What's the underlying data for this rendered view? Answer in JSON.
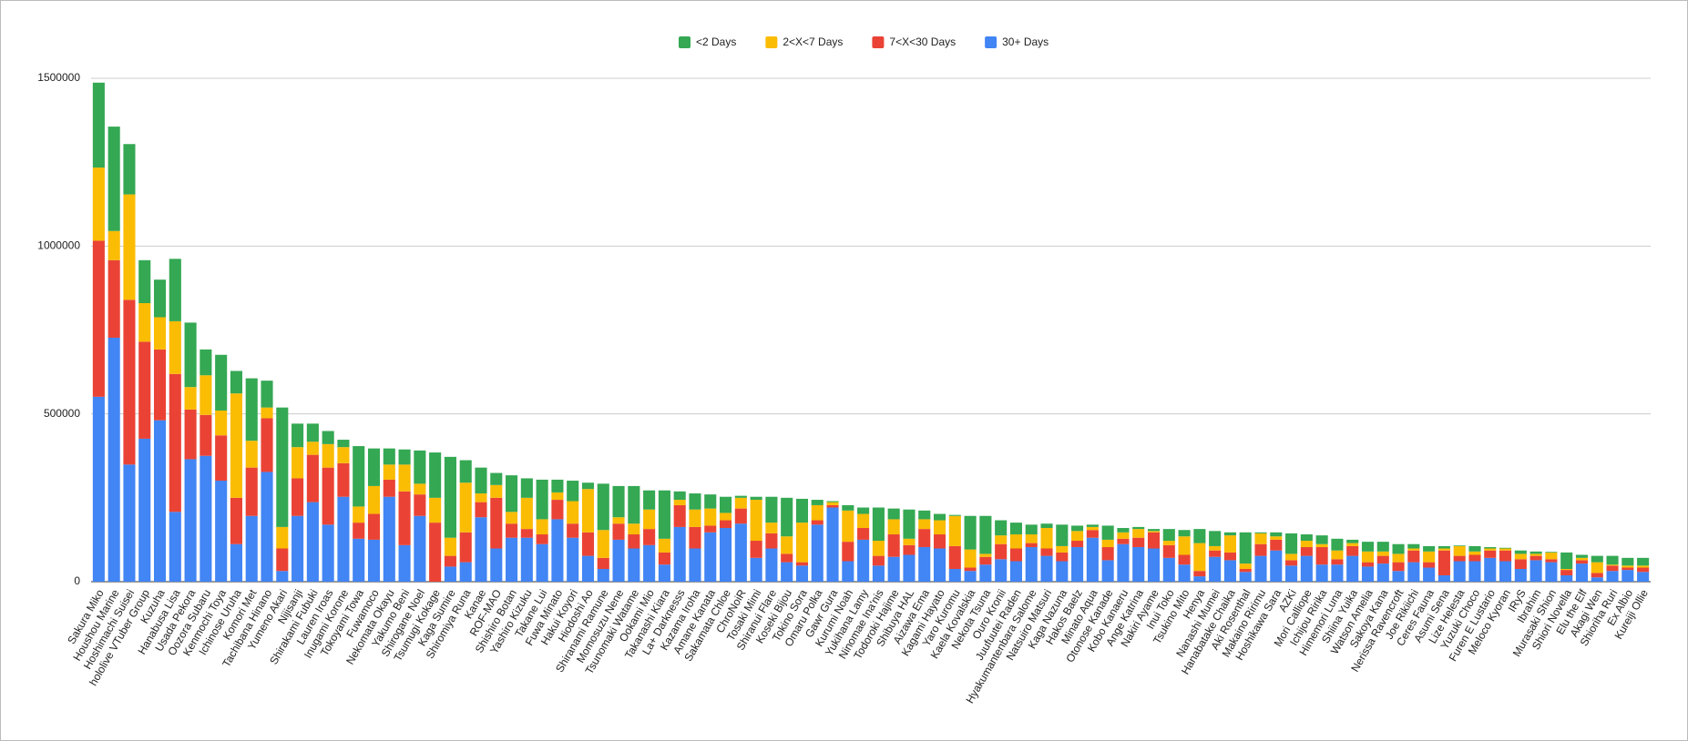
{
  "chart_data": {
    "type": "stacked_bar",
    "categories": [
      "Sakura Miko",
      "Houshou Marine",
      "Hoshimachi Suisei",
      "hololive VTuber Group",
      "Kuzuha",
      "Hanabusa Lisa",
      "Usada Pekora",
      "Oozora Subaru",
      "Kenmochi Toya",
      "Ichinose Uruha",
      "Komori Met",
      "Tachibana Hinano",
      "Yumeno Akari",
      "Nijisanji",
      "Shirakami Fubuki",
      "Lauren Iroas",
      "Inugami Korone",
      "Tokoyami Towa",
      "Fuwamoco",
      "Nekomata Okayu",
      "Yakumo Beni",
      "Shirogane Noel",
      "Tsumugi Kokage",
      "Kaga Sumire",
      "Shiromiya Runa",
      "Kanae",
      "ROF-MAO",
      "Shishiro Botan",
      "Yashiro Kizuku",
      "Takane Lui",
      "Fuwa Minato",
      "Hakui Koyori",
      "Hiodoshi Ao",
      "Shiranami Ramune",
      "Momosuzu Nene",
      "Tsunomaki Watame",
      "Ookami Mio",
      "Takanashi Kiara",
      "La+ Darknesss",
      "Kazama Iroha",
      "Amane Kanata",
      "Sakamata Chloe",
      "ChroNoiR",
      "Tosaki Mimi",
      "Shiranui Flare",
      "Koseki Bijou",
      "Tokino Sora",
      "Omaru Polka",
      "Gawr Gura",
      "Kurumi Noah",
      "Yukihana Lamy",
      "Ninomae Ina'nis",
      "Todoroki Hajime",
      "Shibuya HAL",
      "Aizawa Ema",
      "Kagami Hayato",
      "Yaro Kuromu",
      "Kaela Kovalskia",
      "Nekota Tsuna",
      "Ouro Kronii",
      "Juufuutei Raden",
      "Hyakumantenbara Salome",
      "Natsuiro Matsuri",
      "Kaga Nazuna",
      "Hakos Baelz",
      "Minato Aqua",
      "Otonose Kanade",
      "Kobo Kanaeru",
      "Ange Katrina",
      "Nakiri Ayame",
      "Inui Toko",
      "Tsukino Mito",
      "Henya",
      "Nanashi Mumei",
      "Hanabatake Chaika",
      "Aki Rosenthal",
      "Makaino Ririmu",
      "Hoshikawa Sara",
      "AZKi",
      "Mori Calliope",
      "Ichijou Ririka",
      "Himemori Luna",
      "Shiina Yuika",
      "Watson Amelia",
      "Sakoya Kana",
      "Nerissa Ravencroft",
      "Joe Rikiichi",
      "Ceres Fauna",
      "Asumi Sena",
      "Lize Helesta",
      "Yuzuki Choco",
      "Furen E Lustario",
      "Meloco Kyoran",
      "IRyS",
      "Ibrahim",
      "Murasaki Shion",
      "Shiori Novella",
      "Elu the Elf",
      "Akagi Wen",
      "Shioriha Ruri",
      "Ex Albio",
      "Kureiji Ollie"
    ],
    "series": [
      {
        "name": "<2 Days",
        "color": "#34a853",
        "values": [
          253000,
          311000,
          150000,
          128000,
          112000,
          186000,
          192000,
          77000,
          166000,
          67000,
          186000,
          80000,
          356000,
          70000,
          54000,
          39000,
          22000,
          180000,
          112000,
          48000,
          45000,
          99000,
          135000,
          241000,
          67000,
          77000,
          36000,
          109000,
          58000,
          118000,
          38000,
          61000,
          19000,
          138000,
          93000,
          112000,
          57000,
          144000,
          25000,
          48000,
          42000,
          48000,
          6000,
          9000,
          77000,
          115000,
          71000,
          16000,
          3000,
          16000,
          19000,
          99000,
          32000,
          87000,
          26000,
          19000,
          3000,
          100000,
          113000,
          45000,
          35000,
          29000,
          13000,
          64000,
          16000,
          7000,
          42000,
          13000,
          6000,
          6000,
          35000,
          19000,
          42000,
          45000,
          9000,
          93000,
          3000,
          12000,
          61000,
          19000,
          26000,
          35000,
          10000,
          29000,
          29000,
          29000,
          13000,
          16000,
          7000,
          2000,
          16000,
          4000,
          2000,
          10000,
          7000,
          2000,
          49000,
          9000,
          19000,
          26000,
          23000,
          23000
        ]
      },
      {
        "name": "2<X<7 Days",
        "color": "#fbbc04",
        "values": [
          218000,
          87000,
          314000,
          115000,
          96000,
          157000,
          67000,
          118000,
          74000,
          311000,
          80000,
          32000,
          64000,
          93000,
          39000,
          70000,
          48000,
          48000,
          83000,
          45000,
          80000,
          32000,
          74000,
          54000,
          148000,
          26000,
          38000,
          35000,
          93000,
          45000,
          22000,
          67000,
          129000,
          83000,
          19000,
          32000,
          58000,
          41000,
          16000,
          52000,
          51000,
          22000,
          32000,
          122000,
          32000,
          52000,
          118000,
          45000,
          9000,
          93000,
          42000,
          45000,
          45000,
          19000,
          29000,
          42000,
          90000,
          54000,
          9000,
          26000,
          42000,
          26000,
          61000,
          19000,
          29000,
          9000,
          22000,
          19000,
          26000,
          4000,
          13000,
          55000,
          83000,
          13000,
          51000,
          16000,
          32000,
          10000,
          19000,
          19000,
          9000,
          26000,
          9000,
          32000,
          13000,
          25000,
          6000,
          32000,
          6000,
          29000,
          10000,
          6000,
          6000,
          16000,
          6000,
          20000,
          3000,
          7000,
          32000,
          3000,
          6000,
          6000
        ]
      },
      {
        "name": "7<X<30 Days",
        "color": "#ea4335",
        "values": [
          465000,
          231000,
          491000,
          289000,
          211000,
          411000,
          148000,
          122000,
          135000,
          138000,
          144000,
          160000,
          67000,
          112000,
          141000,
          170000,
          100000,
          48000,
          77000,
          51000,
          160000,
          64000,
          176000,
          32000,
          89000,
          45000,
          151000,
          42000,
          26000,
          29000,
          58000,
          42000,
          70000,
          33000,
          48000,
          42000,
          48000,
          36000,
          65000,
          64000,
          20000,
          23000,
          45000,
          51000,
          45000,
          25000,
          10000,
          13000,
          7000,
          58000,
          35000,
          29000,
          67000,
          29000,
          54000,
          42000,
          68000,
          10000,
          23000,
          45000,
          38000,
          12000,
          22000,
          26000,
          19000,
          23000,
          39000,
          16000,
          28000,
          48000,
          38000,
          29000,
          16000,
          19000,
          23000,
          9000,
          35000,
          32000,
          16000,
          26000,
          52000,
          16000,
          29000,
          13000,
          23000,
          26000,
          35000,
          16000,
          74000,
          16000,
          19000,
          22000,
          32000,
          29000,
          13000,
          9000,
          16000,
          10000,
          13000,
          16000,
          7000,
          13000
        ]
      },
      {
        "name": "30+ Days",
        "color": "#4285f4",
        "values": [
          551000,
          727000,
          349000,
          426000,
          481000,
          208000,
          365000,
          375000,
          301000,
          112000,
          196000,
          327000,
          32000,
          196000,
          237000,
          170000,
          253000,
          128000,
          125000,
          253000,
          109000,
          196000,
          0,
          45000,
          58000,
          192000,
          99000,
          131000,
          131000,
          112000,
          186000,
          131000,
          77000,
          38000,
          125000,
          99000,
          109000,
          51000,
          163000,
          99000,
          147000,
          160000,
          173000,
          71000,
          99000,
          58000,
          48000,
          170000,
          221000,
          61000,
          125000,
          48000,
          74000,
          80000,
          103000,
          99000,
          38000,
          32000,
          51000,
          67000,
          61000,
          103000,
          77000,
          61000,
          103000,
          131000,
          64000,
          112000,
          103000,
          99000,
          71000,
          51000,
          16000,
          74000,
          64000,
          29000,
          77000,
          93000,
          48000,
          77000,
          51000,
          51000,
          77000,
          45000,
          54000,
          32000,
          58000,
          42000,
          19000,
          61000,
          61000,
          71000,
          61000,
          38000,
          64000,
          58000,
          19000,
          54000,
          13000,
          32000,
          35000,
          29000
        ]
      }
    ],
    "ylim": [
      0,
      1500000
    ],
    "yticks": [
      0,
      500000,
      1000000,
      1500000
    ],
    "grid": true,
    "legend": "top"
  }
}
